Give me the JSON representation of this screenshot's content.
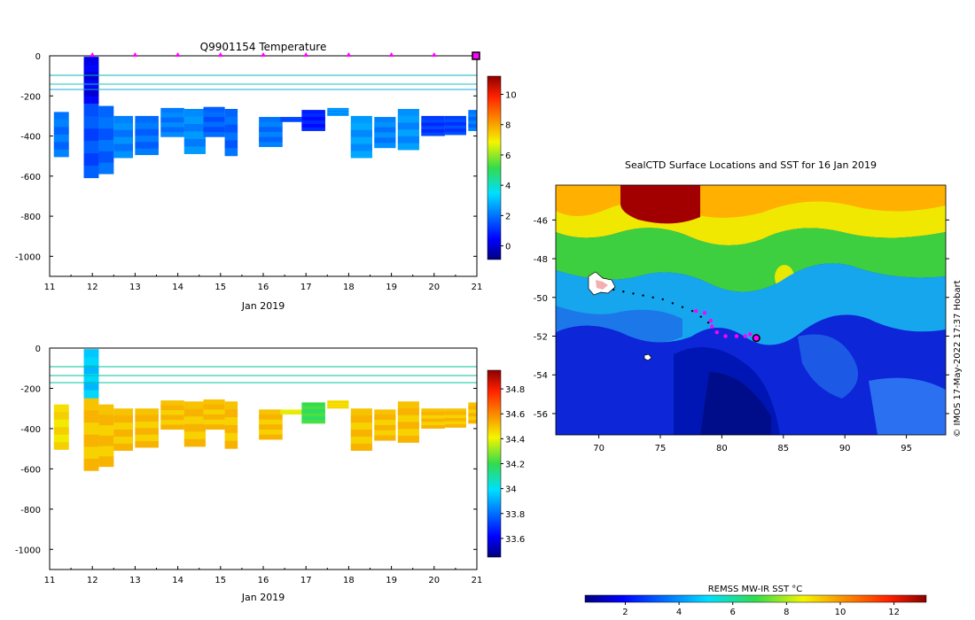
{
  "chart_data": [
    {
      "id": "temperature",
      "type": "heatmap",
      "title": "Q9901154  Temperature",
      "xlabel": "Jan 2019",
      "ylabel": "",
      "xlim": [
        11,
        21
      ],
      "ylim": [
        -1100,
        0
      ],
      "xticks": [
        "11",
        "12",
        "13",
        "14",
        "15",
        "16",
        "17",
        "18",
        "19",
        "20",
        "21"
      ],
      "yticks": [
        0,
        -200,
        -400,
        -600,
        -800,
        -1000
      ],
      "colorbar": {
        "min": -0.9,
        "max": 11.2,
        "ticks": [
          0,
          2,
          4,
          6,
          8,
          10
        ]
      },
      "profile_markers_x": [
        12,
        13,
        14,
        15,
        16,
        17,
        18,
        19,
        20
      ],
      "current_marker_x": 21,
      "profiles": [
        {
          "x": 11.1,
          "w": 0.35,
          "top": 280,
          "bottom": 505,
          "value": 2.0
        },
        {
          "x": 11.8,
          "w": 0.35,
          "top": 5,
          "bottom": 240,
          "value": 0.2
        },
        {
          "x": 11.8,
          "w": 0.35,
          "top": 240,
          "bottom": 610,
          "value": 1.5
        },
        {
          "x": 12.15,
          "w": 0.35,
          "top": 250,
          "bottom": 590,
          "value": 1.8
        },
        {
          "x": 12.5,
          "w": 0.45,
          "top": 300,
          "bottom": 510,
          "value": 2.2
        },
        {
          "x": 13.0,
          "w": 0.55,
          "top": 300,
          "bottom": 495,
          "value": 1.9
        },
        {
          "x": 13.6,
          "w": 0.55,
          "top": 260,
          "bottom": 405,
          "value": 2.1
        },
        {
          "x": 14.15,
          "w": 0.5,
          "top": 265,
          "bottom": 490,
          "value": 2.3
        },
        {
          "x": 14.6,
          "w": 0.5,
          "top": 255,
          "bottom": 405,
          "value": 1.7
        },
        {
          "x": 15.1,
          "w": 0.3,
          "top": 265,
          "bottom": 500,
          "value": 1.8
        },
        {
          "x": 15.9,
          "w": 0.55,
          "top": 305,
          "bottom": 455,
          "value": 2.0
        },
        {
          "x": 16.4,
          "w": 0.5,
          "top": 305,
          "bottom": 330,
          "value": 1.4
        },
        {
          "x": 16.9,
          "w": 0.55,
          "top": 270,
          "bottom": 375,
          "value": 0.8
        },
        {
          "x": 17.5,
          "w": 0.5,
          "top": 260,
          "bottom": 300,
          "value": 2.4
        },
        {
          "x": 18.05,
          "w": 0.5,
          "top": 300,
          "bottom": 510,
          "value": 2.5
        },
        {
          "x": 18.6,
          "w": 0.5,
          "top": 305,
          "bottom": 460,
          "value": 2.2
        },
        {
          "x": 19.15,
          "w": 0.5,
          "top": 265,
          "bottom": 470,
          "value": 2.4
        },
        {
          "x": 19.7,
          "w": 0.55,
          "top": 300,
          "bottom": 400,
          "value": 1.2
        },
        {
          "x": 20.25,
          "w": 0.5,
          "top": 300,
          "bottom": 395,
          "value": 1.3
        },
        {
          "x": 20.8,
          "w": 0.5,
          "top": 270,
          "bottom": 375,
          "value": 2.0
        }
      ]
    },
    {
      "id": "salinity",
      "type": "heatmap",
      "title": "",
      "xlabel": "Jan 2019",
      "ylabel": "",
      "xlim": [
        11,
        21
      ],
      "ylim": [
        -1100,
        0
      ],
      "xticks": [
        "11",
        "12",
        "13",
        "14",
        "15",
        "16",
        "17",
        "18",
        "19",
        "20",
        "21"
      ],
      "yticks": [
        0,
        -200,
        -400,
        -600,
        -800,
        -1000
      ],
      "colorbar": {
        "min": 33.45,
        "max": 34.95,
        "ticks": [
          "33.6",
          "33.8",
          "34",
          "34.2",
          "34.4",
          "34.6",
          "34.8"
        ]
      },
      "profiles": [
        {
          "x": 11.1,
          "w": 0.35,
          "top": 280,
          "bottom": 505,
          "value": 34.45
        },
        {
          "x": 11.8,
          "w": 0.35,
          "top": 5,
          "bottom": 250,
          "value": 33.95
        },
        {
          "x": 11.8,
          "w": 0.35,
          "top": 250,
          "bottom": 610,
          "value": 34.5
        },
        {
          "x": 12.15,
          "w": 0.35,
          "top": 280,
          "bottom": 590,
          "value": 34.5
        },
        {
          "x": 12.5,
          "w": 0.45,
          "top": 300,
          "bottom": 510,
          "value": 34.5
        },
        {
          "x": 13.0,
          "w": 0.55,
          "top": 300,
          "bottom": 495,
          "value": 34.5
        },
        {
          "x": 13.6,
          "w": 0.55,
          "top": 260,
          "bottom": 405,
          "value": 34.5
        },
        {
          "x": 14.15,
          "w": 0.5,
          "top": 265,
          "bottom": 490,
          "value": 34.5
        },
        {
          "x": 14.6,
          "w": 0.5,
          "top": 255,
          "bottom": 405,
          "value": 34.5
        },
        {
          "x": 15.1,
          "w": 0.3,
          "top": 265,
          "bottom": 500,
          "value": 34.5
        },
        {
          "x": 15.9,
          "w": 0.55,
          "top": 305,
          "bottom": 455,
          "value": 34.5
        },
        {
          "x": 16.4,
          "w": 0.5,
          "top": 305,
          "bottom": 330,
          "value": 34.4
        },
        {
          "x": 16.9,
          "w": 0.55,
          "top": 270,
          "bottom": 375,
          "value": 34.2
        },
        {
          "x": 17.5,
          "w": 0.5,
          "top": 260,
          "bottom": 300,
          "value": 34.45
        },
        {
          "x": 18.05,
          "w": 0.5,
          "top": 300,
          "bottom": 510,
          "value": 34.5
        },
        {
          "x": 18.6,
          "w": 0.5,
          "top": 305,
          "bottom": 460,
          "value": 34.5
        },
        {
          "x": 19.15,
          "w": 0.5,
          "top": 265,
          "bottom": 470,
          "value": 34.5
        },
        {
          "x": 19.7,
          "w": 0.55,
          "top": 300,
          "bottom": 400,
          "value": 34.5
        },
        {
          "x": 20.25,
          "w": 0.5,
          "top": 300,
          "bottom": 395,
          "value": 34.5
        },
        {
          "x": 20.8,
          "w": 0.5,
          "top": 270,
          "bottom": 375,
          "value": 34.5
        }
      ]
    },
    {
      "id": "sst_map",
      "type": "heatmap",
      "title": "SealCTD Surface Locations and SST for 16 Jan 2019",
      "xlim": [
        66.5,
        98.2
      ],
      "ylim": [
        -57.1,
        -44.2
      ],
      "xticks": [
        "70",
        "75",
        "80",
        "85",
        "90",
        "95"
      ],
      "yticks": [
        "-46",
        "-48",
        "-50",
        "-52",
        "-54",
        "-56"
      ],
      "colorbar_label": "REMSS MW-IR SST °C",
      "colorbar": {
        "min": 0.5,
        "max": 13.2,
        "ticks": [
          "2",
          "4",
          "6",
          "8",
          "10",
          "12"
        ]
      },
      "credit": "© IMOS 17-May-2022 17:37 Hobart",
      "track": [
        [
          71.2,
          -49.6
        ],
        [
          72.0,
          -49.7
        ],
        [
          72.8,
          -49.8
        ],
        [
          73.6,
          -49.9
        ],
        [
          74.4,
          -50.0
        ],
        [
          75.2,
          -50.1
        ],
        [
          76.0,
          -50.3
        ],
        [
          76.8,
          -50.5
        ],
        [
          77.6,
          -50.7
        ],
        [
          78.3,
          -51.0
        ],
        [
          78.9,
          -51.3
        ]
      ],
      "recent_locations": [
        [
          77.9,
          -50.7
        ],
        [
          78.6,
          -50.8
        ],
        [
          79.1,
          -51.2
        ],
        [
          79.2,
          -51.5
        ],
        [
          79.6,
          -51.8
        ],
        [
          80.3,
          -52.0
        ],
        [
          81.2,
          -52.0
        ],
        [
          81.9,
          -52.0
        ],
        [
          82.3,
          -51.9
        ]
      ],
      "current_location": [
        82.8,
        -52.1
      ]
    }
  ],
  "colors": {
    "marker": "#ff00ff",
    "marker_outline": "#000000"
  }
}
